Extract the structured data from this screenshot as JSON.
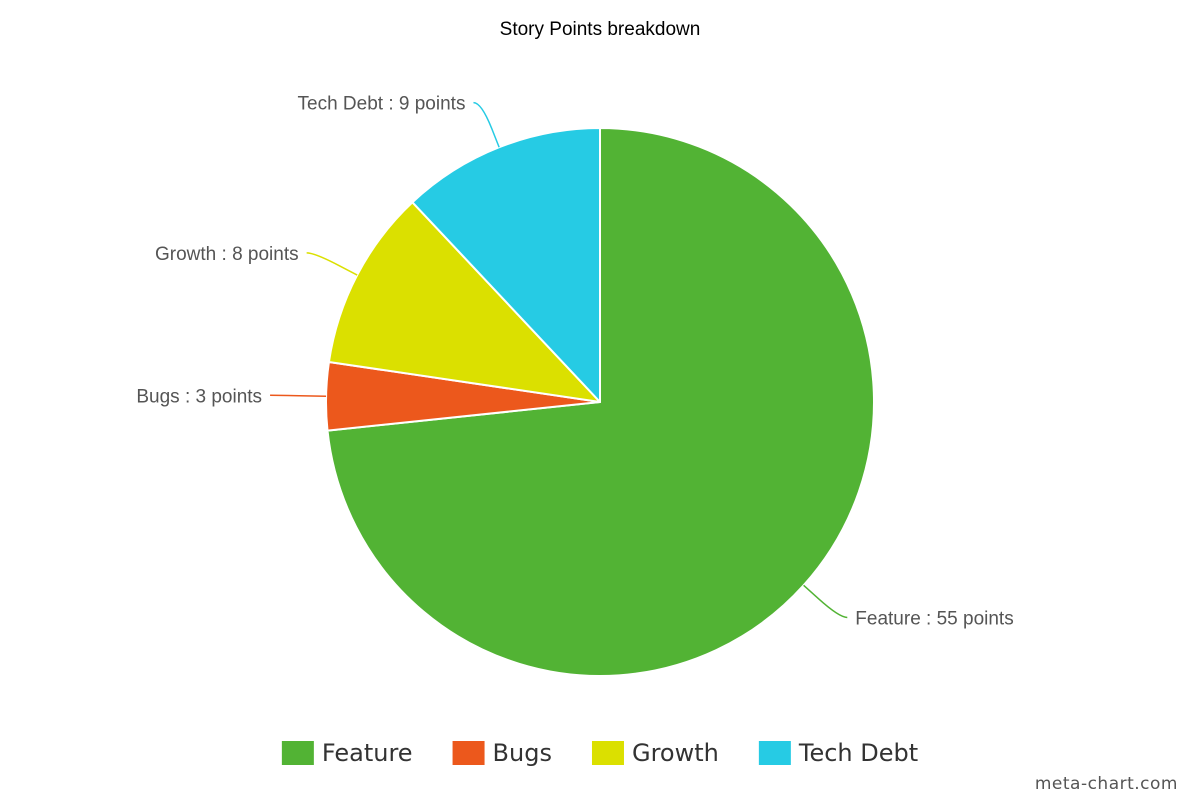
{
  "chart_data": {
    "type": "pie",
    "title": "Story Points breakdown",
    "unit": "points",
    "slices": [
      {
        "label": "Feature",
        "value": 55,
        "color": "#52b334"
      },
      {
        "label": "Bugs",
        "value": 3,
        "color": "#ec581c"
      },
      {
        "label": "Growth",
        "value": 8,
        "color": "#dbe000"
      },
      {
        "label": "Tech Debt",
        "value": 9,
        "color": "#26cbe4"
      }
    ],
    "legend_position": "bottom",
    "start_angle": "12 o'clock",
    "direction": "clockwise"
  },
  "watermark": "meta-chart.com"
}
